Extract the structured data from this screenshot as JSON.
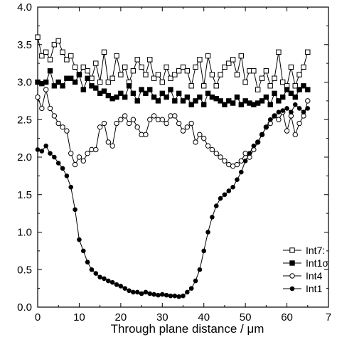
{
  "chart_data": {
    "type": "line",
    "title": "",
    "xlabel": "Through plane distance / μm",
    "ylabel": "",
    "xlim": [
      0,
      70
    ],
    "ylim": [
      0.0,
      4.0
    ],
    "xticks": [
      "0",
      "10",
      "20",
      "30",
      "40",
      "50",
      "60",
      "7"
    ],
    "yticks": [
      "0.0",
      "0.5",
      "1.0",
      "1.5",
      "2.0",
      "2.5",
      "3.0",
      "3.5",
      "4.0"
    ],
    "legend_placement": "bottom-right",
    "grid": false,
    "series": [
      {
        "name": "Int7:",
        "marker": "open-square",
        "color": "#000000",
        "x": [
          0,
          1,
          2,
          3,
          4,
          5,
          6,
          7,
          8,
          9,
          10,
          11,
          12,
          13,
          14,
          15,
          16,
          17,
          18,
          19,
          20,
          21,
          22,
          23,
          24,
          25,
          26,
          27,
          28,
          29,
          30,
          31,
          32,
          33,
          34,
          35,
          36,
          37,
          38,
          39,
          40,
          41,
          42,
          43,
          44,
          45,
          46,
          47,
          48,
          49,
          50,
          51,
          52,
          53,
          54,
          55,
          56,
          57,
          58,
          59,
          60,
          61,
          62,
          63,
          64,
          65
        ],
        "values": [
          3.6,
          3.35,
          3.4,
          3.3,
          3.5,
          3.55,
          3.4,
          3.3,
          3.35,
          3.2,
          3.1,
          3.2,
          3.15,
          3.05,
          3.25,
          3.0,
          3.4,
          3.0,
          3.05,
          3.35,
          3.1,
          3.2,
          3.0,
          3.15,
          3.3,
          3.2,
          3.1,
          3.3,
          3.05,
          3.1,
          3.0,
          3.2,
          3.05,
          3.1,
          3.15,
          3.2,
          3.15,
          2.95,
          3.2,
          3.3,
          2.95,
          3.35,
          3.1,
          2.95,
          3.1,
          3.2,
          3.25,
          3.3,
          3.1,
          3.35,
          3.0,
          3.15,
          3.15,
          2.9,
          3.05,
          3.15,
          2.95,
          3.05,
          3.4,
          3.0,
          2.95,
          3.2,
          2.95,
          3.1,
          3.2,
          3.4
        ]
      },
      {
        "name": "Int1σ",
        "marker": "filled-square",
        "color": "#000000",
        "x": [
          0,
          1,
          2,
          3,
          4,
          5,
          6,
          7,
          8,
          9,
          10,
          11,
          12,
          13,
          14,
          15,
          16,
          17,
          18,
          19,
          20,
          21,
          22,
          23,
          24,
          25,
          26,
          27,
          28,
          29,
          30,
          31,
          32,
          33,
          34,
          35,
          36,
          37,
          38,
          39,
          40,
          41,
          42,
          43,
          44,
          45,
          46,
          47,
          48,
          49,
          50,
          51,
          52,
          53,
          54,
          55,
          56,
          57,
          58,
          59,
          60,
          61,
          62,
          63,
          64,
          65
        ],
        "values": [
          3.0,
          2.98,
          3.0,
          3.15,
          2.95,
          3.0,
          2.95,
          3.05,
          3.05,
          3.0,
          3.1,
          2.9,
          3.05,
          2.95,
          2.92,
          2.85,
          2.88,
          2.82,
          2.78,
          2.8,
          2.85,
          2.8,
          2.95,
          2.85,
          2.75,
          2.9,
          2.85,
          2.9,
          2.8,
          2.75,
          2.85,
          2.8,
          2.9,
          2.75,
          2.85,
          2.75,
          2.8,
          2.7,
          2.75,
          2.8,
          2.7,
          2.85,
          2.8,
          2.78,
          2.75,
          2.7,
          2.75,
          2.72,
          2.8,
          2.7,
          2.75,
          2.72,
          2.7,
          2.72,
          2.75,
          2.8,
          2.7,
          2.85,
          2.75,
          2.8,
          2.9,
          2.85,
          2.8,
          2.9,
          2.95,
          2.9
        ]
      },
      {
        "name": "Int4",
        "marker": "open-circle",
        "color": "#000000",
        "x": [
          0,
          1,
          2,
          3,
          4,
          5,
          6,
          7,
          8,
          9,
          10,
          11,
          12,
          13,
          14,
          15,
          16,
          17,
          18,
          19,
          20,
          21,
          22,
          23,
          24,
          25,
          26,
          27,
          28,
          29,
          30,
          31,
          32,
          33,
          34,
          35,
          36,
          37,
          38,
          39,
          40,
          41,
          42,
          43,
          44,
          45,
          46,
          47,
          48,
          49,
          50,
          51,
          52,
          53,
          54,
          55,
          56,
          57,
          58,
          59,
          60,
          61,
          62,
          63,
          64,
          65
        ],
        "values": [
          2.8,
          2.65,
          2.9,
          2.65,
          2.55,
          2.45,
          2.4,
          2.35,
          2.05,
          1.9,
          2.0,
          1.95,
          2.05,
          2.1,
          2.1,
          2.4,
          2.45,
          2.2,
          2.15,
          2.45,
          2.5,
          2.55,
          2.45,
          2.5,
          2.4,
          2.3,
          2.3,
          2.5,
          2.55,
          2.5,
          2.5,
          2.45,
          2.55,
          2.55,
          2.45,
          2.35,
          2.4,
          2.45,
          2.2,
          2.3,
          2.25,
          2.15,
          2.1,
          2.05,
          2.0,
          1.95,
          1.9,
          1.88,
          1.9,
          1.95,
          2.05,
          2.0,
          2.1,
          2.2,
          2.3,
          2.4,
          2.45,
          2.55,
          2.5,
          2.6,
          2.35,
          2.55,
          2.3,
          2.45,
          2.55,
          2.75
        ]
      },
      {
        "name": "Int1",
        "marker": "filled-circle",
        "color": "#000000",
        "x": [
          0,
          1,
          2,
          3,
          4,
          5,
          6,
          7,
          8,
          9,
          10,
          11,
          12,
          13,
          14,
          15,
          16,
          17,
          18,
          19,
          20,
          21,
          22,
          23,
          24,
          25,
          26,
          27,
          28,
          29,
          30,
          31,
          32,
          33,
          34,
          35,
          36,
          37,
          38,
          39,
          40,
          41,
          42,
          43,
          44,
          45,
          46,
          47,
          48,
          49,
          50,
          51,
          52,
          53,
          54,
          55,
          56,
          57,
          58,
          59,
          60,
          61,
          62,
          63,
          64,
          65
        ],
        "values": [
          2.1,
          2.08,
          2.15,
          2.05,
          2.0,
          1.92,
          1.85,
          1.75,
          1.6,
          1.3,
          0.9,
          0.75,
          0.6,
          0.5,
          0.45,
          0.4,
          0.38,
          0.35,
          0.33,
          0.3,
          0.28,
          0.25,
          0.22,
          0.2,
          0.2,
          0.18,
          0.2,
          0.18,
          0.17,
          0.16,
          0.17,
          0.16,
          0.15,
          0.15,
          0.14,
          0.15,
          0.2,
          0.25,
          0.35,
          0.5,
          0.75,
          1.0,
          1.2,
          1.35,
          1.45,
          1.5,
          1.55,
          1.6,
          1.7,
          1.8,
          1.95,
          2.05,
          2.15,
          2.2,
          2.3,
          2.4,
          2.5,
          2.55,
          2.6,
          2.62,
          2.65,
          2.6,
          2.7,
          2.65,
          2.6,
          2.65
        ]
      }
    ]
  }
}
